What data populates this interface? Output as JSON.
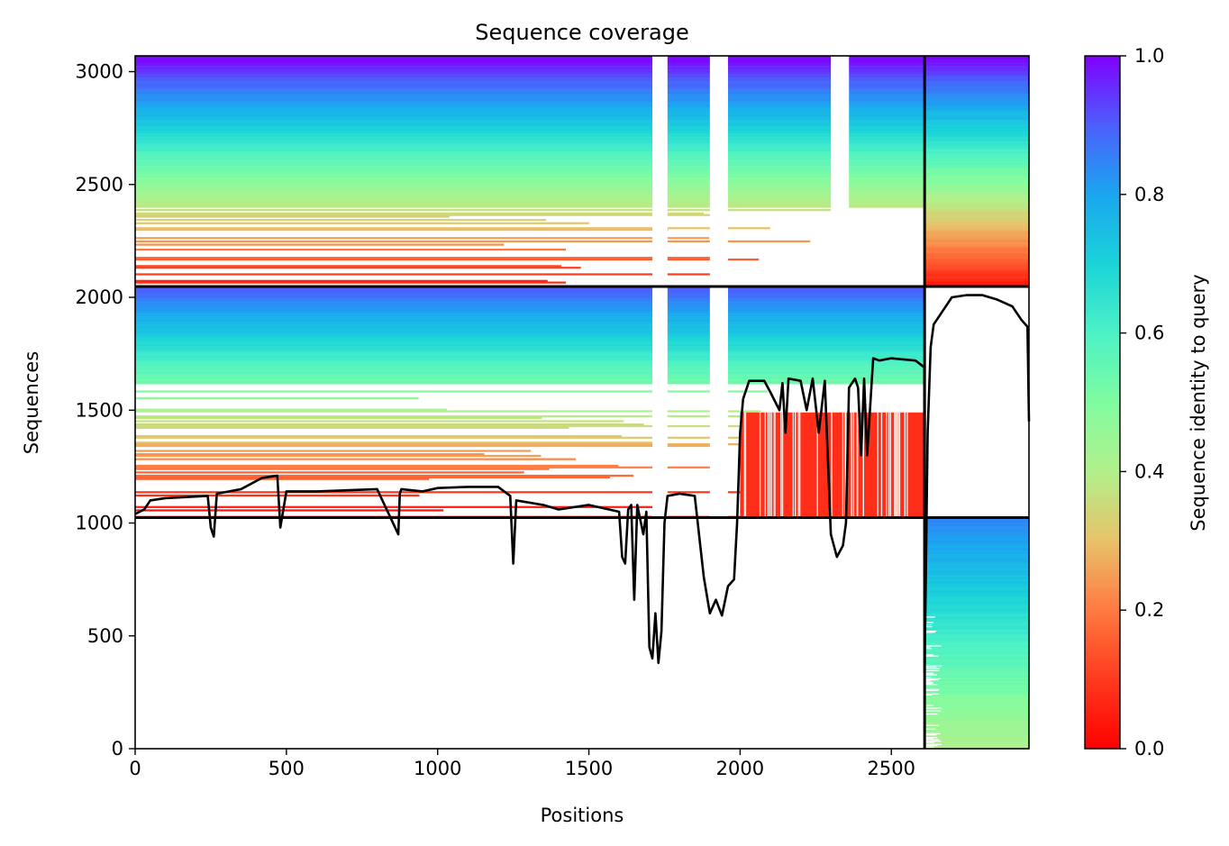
{
  "chart_data": {
    "type": "heatmap",
    "title": "Sequence coverage",
    "xlabel": "Positions",
    "ylabel": "Sequences",
    "xlim": [
      0,
      2955
    ],
    "ylim": [
      0,
      3070
    ],
    "x_ticks": [
      0,
      500,
      1000,
      1500,
      2000,
      2500
    ],
    "y_ticks": [
      0,
      500,
      1000,
      1500,
      2000,
      2500,
      3000
    ],
    "colorbar": {
      "label": "Sequence identity to query",
      "colormap": "rainbow_r",
      "range": [
        0,
        1
      ],
      "ticks": [
        "0.0",
        "0.2",
        "0.4",
        "0.6",
        "0.8",
        "1.0"
      ]
    },
    "grid": false,
    "chain_boundaries_x": [
      2610
    ],
    "block_boundaries_y": [
      1024,
      2048
    ],
    "blocks": [
      {
        "x_start": 0,
        "x_end": 2610,
        "y_start": 2048,
        "y_end": 3070,
        "identity_top": 1.0,
        "identity_bottom": 0.05,
        "dense_until_y": 2400,
        "gap_bands": [
          [
            1710,
            1760
          ],
          [
            1900,
            1960
          ],
          [
            2300,
            2360
          ]
        ]
      },
      {
        "x_start": 2610,
        "x_end": 2955,
        "y_start": 2048,
        "y_end": 3070,
        "identity_top": 1.0,
        "identity_bottom": 0.05,
        "dense_until_y": 2048,
        "gap_bands": []
      },
      {
        "x_start": 0,
        "x_end": 2610,
        "y_start": 1024,
        "y_end": 2048,
        "identity_top": 0.9,
        "identity_bottom": 0.0,
        "dense_until_y": 1620,
        "red_region": [
          2000,
          2610,
          1024,
          1490
        ],
        "gap_bands": [
          [
            1710,
            1760
          ],
          [
            1900,
            1960
          ]
        ]
      },
      {
        "x_start": 2610,
        "x_end": 2955,
        "y_start": 0,
        "y_end": 1024,
        "identity_top": 0.85,
        "identity_bottom": 0.4,
        "dense_until_y": 0,
        "gap_bands": []
      }
    ],
    "coverage_line": {
      "x": [
        0,
        30,
        50,
        100,
        240,
        250,
        260,
        270,
        350,
        420,
        470,
        480,
        490,
        500,
        600,
        800,
        870,
        875,
        880,
        950,
        1000,
        1100,
        1200,
        1240,
        1250,
        1260,
        1350,
        1400,
        1500,
        1600,
        1610,
        1620,
        1630,
        1640,
        1650,
        1660,
        1680,
        1690,
        1700,
        1710,
        1720,
        1730,
        1740,
        1750,
        1760,
        1800,
        1850,
        1870,
        1880,
        1900,
        1920,
        1940,
        1960,
        1980,
        1990,
        2000,
        2010,
        2030,
        2080,
        2100,
        2130,
        2140,
        2150,
        2160,
        2200,
        2220,
        2240,
        2260,
        2280,
        2300,
        2320,
        2340,
        2350,
        2360,
        2380,
        2390,
        2400,
        2410,
        2420,
        2440,
        2460,
        2500,
        2580,
        2609,
        2610,
        2620,
        2630,
        2640,
        2650,
        2660,
        2700,
        2750,
        2800,
        2850,
        2900,
        2930,
        2950,
        2955
      ],
      "y": [
        1040,
        1060,
        1100,
        1110,
        1120,
        980,
        940,
        1130,
        1150,
        1200,
        1210,
        980,
        1060,
        1140,
        1140,
        1150,
        950,
        1130,
        1150,
        1140,
        1155,
        1160,
        1160,
        1120,
        820,
        1100,
        1080,
        1060,
        1080,
        1050,
        850,
        820,
        1060,
        1080,
        660,
        1080,
        950,
        1050,
        450,
        400,
        600,
        380,
        520,
        1000,
        1120,
        1130,
        1120,
        880,
        760,
        600,
        660,
        590,
        720,
        750,
        1000,
        1400,
        1550,
        1630,
        1630,
        1580,
        1500,
        1620,
        1400,
        1640,
        1630,
        1500,
        1640,
        1400,
        1630,
        950,
        850,
        900,
        1000,
        1600,
        1640,
        1600,
        1300,
        1640,
        1300,
        1730,
        1720,
        1730,
        1720,
        1690,
        340,
        1400,
        1780,
        1880,
        1900,
        1920,
        2000,
        2010,
        2010,
        1990,
        1960,
        1900,
        1870,
        1450
      ]
    }
  }
}
